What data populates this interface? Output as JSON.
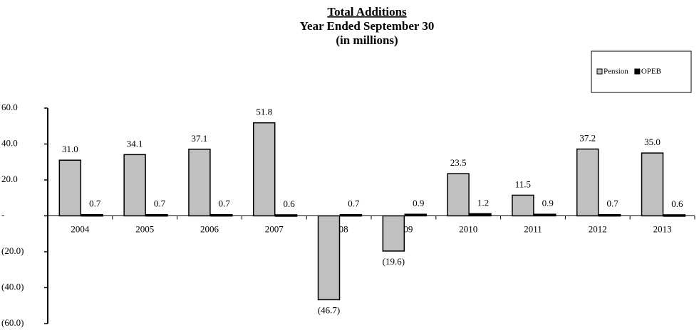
{
  "chart_data": {
    "type": "bar",
    "title": "Total Additions",
    "subtitle": [
      "Year Ended September 30",
      "(in millions)"
    ],
    "categories": [
      "2004",
      "2005",
      "2006",
      "2007",
      "2008",
      "2009",
      "2010",
      "2011",
      "2012",
      "2013"
    ],
    "series": [
      {
        "name": "Pension",
        "color": "#c0c0c0",
        "values": [
          31.0,
          34.1,
          37.1,
          51.8,
          -46.7,
          -19.6,
          23.5,
          11.5,
          37.2,
          35.0
        ],
        "value_labels": [
          "31.0",
          "34.1",
          "37.1",
          "51.8",
          "(46.7)",
          "(19.6)",
          "23.5",
          "11.5",
          "37.2",
          "35.0"
        ]
      },
      {
        "name": "OPEB",
        "color": "#000000",
        "values": [
          0.7,
          0.7,
          0.7,
          0.6,
          0.7,
          0.9,
          1.2,
          0.9,
          0.7,
          0.6
        ]
      }
    ],
    "ylim": [
      -60,
      60
    ],
    "yticks": [
      {
        "value": 60,
        "label": "60.0"
      },
      {
        "value": 40,
        "label": "40.0"
      },
      {
        "value": 20,
        "label": "20.0"
      },
      {
        "value": 0,
        "label": "-"
      },
      {
        "value": -20,
        "label": "(20.0)"
      },
      {
        "value": -40,
        "label": "(40.0)"
      },
      {
        "value": -60,
        "label": "(60.0)"
      }
    ],
    "legend": "top-right"
  }
}
